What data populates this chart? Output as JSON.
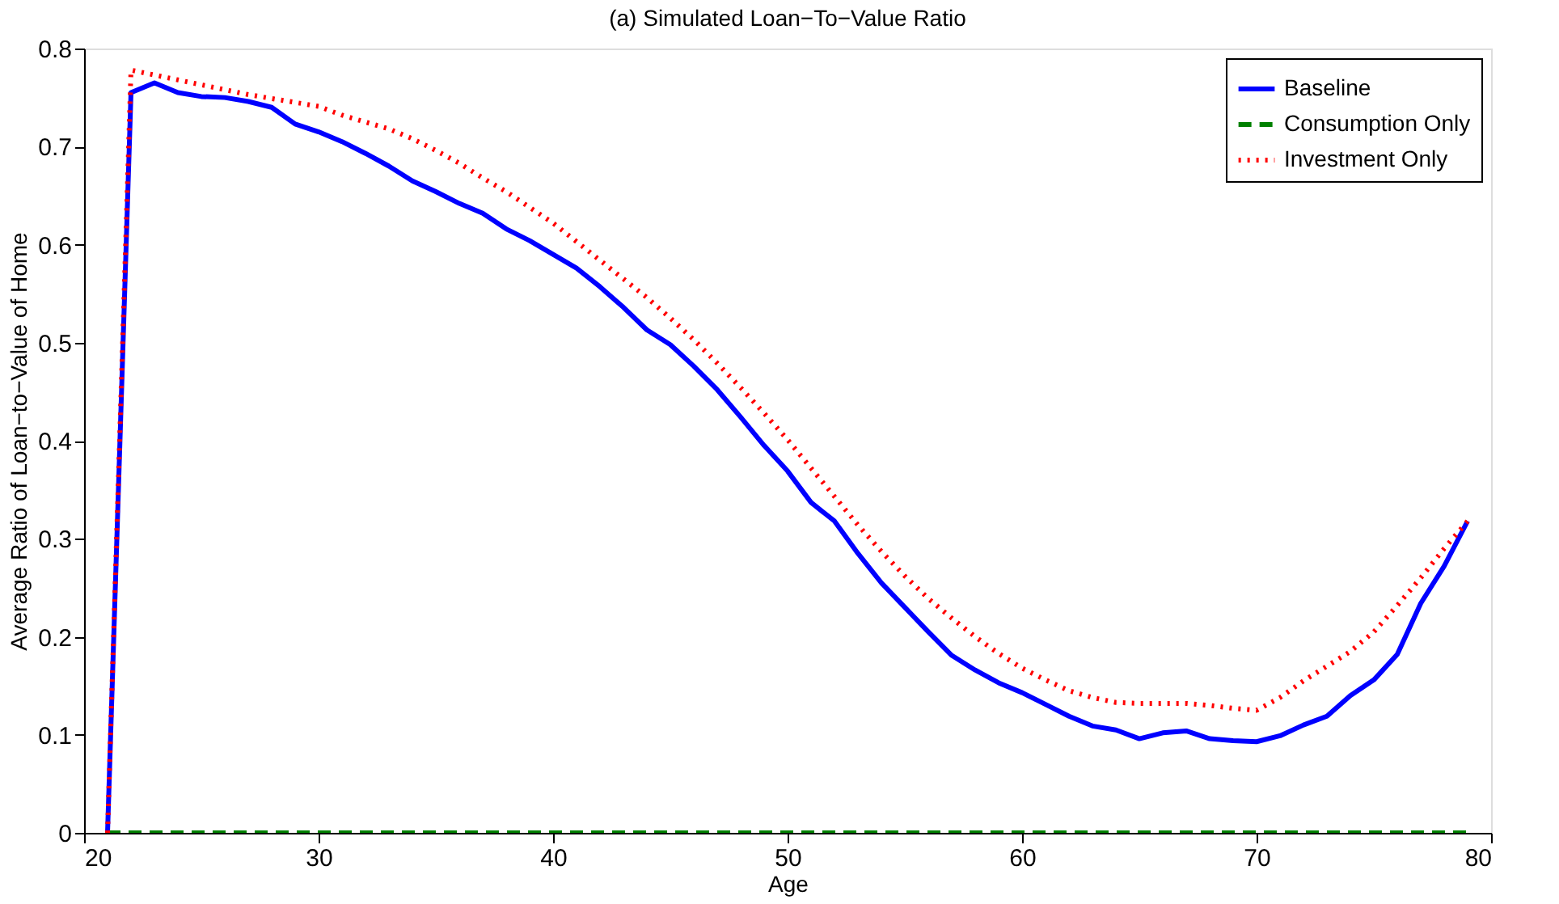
{
  "chart_data": {
    "type": "line",
    "title": "(a) Simulated Loan−To−Value Ratio",
    "xlabel": "Age",
    "ylabel": "Average Ratio of Loan−to−Value of Home",
    "x": [
      21,
      22,
      23,
      24,
      25,
      26,
      27,
      28,
      29,
      30,
      31,
      32,
      33,
      34,
      35,
      36,
      37,
      38,
      39,
      40,
      41,
      42,
      43,
      44,
      45,
      46,
      47,
      48,
      49,
      50,
      51,
      52,
      53,
      54,
      55,
      56,
      57,
      58,
      59,
      60,
      61,
      62,
      63,
      64,
      65,
      66,
      67,
      68,
      69,
      70,
      71,
      72,
      73,
      74,
      75,
      76,
      77,
      78,
      79
    ],
    "series": [
      {
        "name": "Baseline",
        "color": "#0000ff",
        "line_style": "solid",
        "values": [
          0,
          0.755,
          0.765,
          0.755,
          0.751,
          0.75,
          0.746,
          0.74,
          0.723,
          0.715,
          0.705,
          0.693,
          0.68,
          0.665,
          0.654,
          0.642,
          0.632,
          0.616,
          0.604,
          0.59,
          0.576,
          0.557,
          0.536,
          0.513,
          0.498,
          0.476,
          0.452,
          0.424,
          0.395,
          0.369,
          0.337,
          0.318,
          0.285,
          0.255,
          0.23,
          0.205,
          0.181,
          0.166,
          0.153,
          0.143,
          0.131,
          0.119,
          0.109,
          0.105,
          0.096,
          0.102,
          0.104,
          0.096,
          0.094,
          0.093,
          0.099,
          0.11,
          0.119,
          0.14,
          0.156,
          0.182,
          0.234,
          0.272,
          0.318
        ]
      },
      {
        "name": "Consumption Only",
        "color": "#008000",
        "line_style": "dashed",
        "values": [
          0,
          0,
          0,
          0,
          0,
          0,
          0,
          0,
          0,
          0,
          0,
          0,
          0,
          0,
          0,
          0,
          0,
          0,
          0,
          0,
          0,
          0,
          0,
          0,
          0,
          0,
          0,
          0,
          0,
          0,
          0,
          0,
          0,
          0,
          0,
          0,
          0,
          0,
          0,
          0,
          0,
          0,
          0,
          0,
          0,
          0,
          0,
          0,
          0,
          0,
          0,
          0,
          0,
          0,
          0,
          0,
          0,
          0,
          0
        ]
      },
      {
        "name": "Investment Only",
        "color": "#ff0000",
        "line_style": "dotted",
        "values": [
          0,
          0.778,
          0.773,
          0.768,
          0.763,
          0.758,
          0.753,
          0.749,
          0.745,
          0.741,
          0.732,
          0.725,
          0.718,
          0.708,
          0.696,
          0.683,
          0.668,
          0.654,
          0.638,
          0.622,
          0.603,
          0.584,
          0.565,
          0.546,
          0.525,
          0.503,
          0.479,
          0.454,
          0.428,
          0.401,
          0.372,
          0.343,
          0.314,
          0.287,
          0.262,
          0.239,
          0.219,
          0.2,
          0.183,
          0.168,
          0.156,
          0.145,
          0.138,
          0.133,
          0.132,
          0.132,
          0.132,
          0.13,
          0.127,
          0.125,
          0.138,
          0.155,
          0.17,
          0.185,
          0.205,
          0.232,
          0.26,
          0.29,
          0.318
        ]
      }
    ],
    "xlim": [
      20,
      80
    ],
    "xticks": [
      20,
      30,
      40,
      50,
      60,
      70,
      80
    ],
    "ylim": [
      0,
      0.8
    ],
    "yticks": [
      {
        "value": 0,
        "label": "0"
      },
      0.1,
      0.2,
      0.3,
      0.4,
      0.5,
      0.6,
      0.7,
      0.8
    ],
    "grid": false,
    "legend": "top right"
  }
}
